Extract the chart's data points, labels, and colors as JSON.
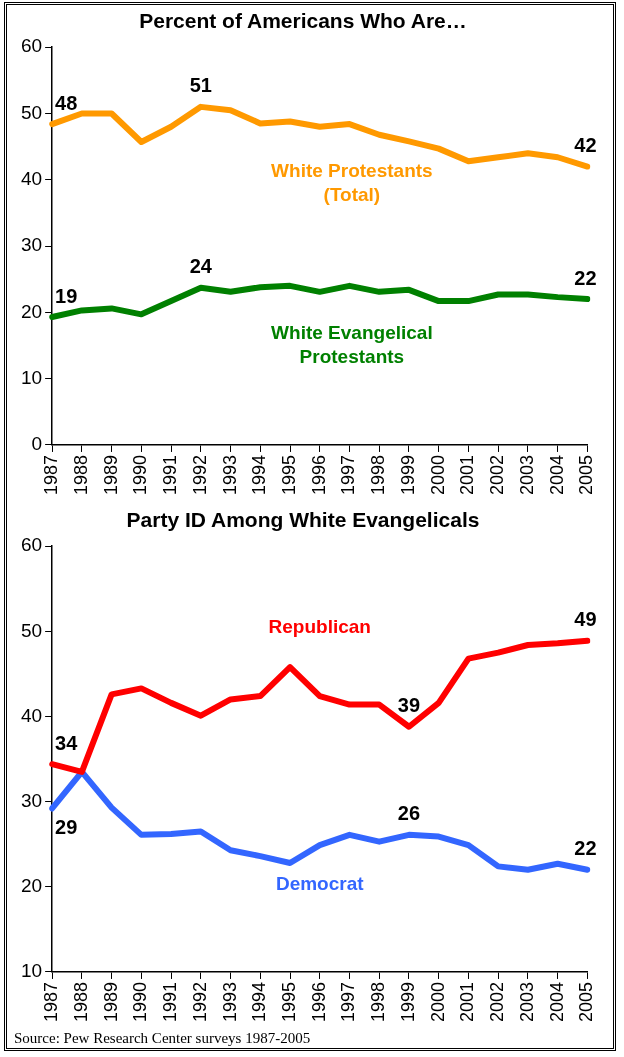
{
  "chart_data": [
    {
      "type": "line",
      "title": "Percent of Americans Who Are…",
      "categories": [
        "1987",
        "1988",
        "1989",
        "1990",
        "1991",
        "1992",
        "1993",
        "1994",
        "1995",
        "1996",
        "1997",
        "1998",
        "1999",
        "2000",
        "2001",
        "2002",
        "2003",
        "2004",
        "2005"
      ],
      "series": [
        {
          "name": "White Protestants (Total)",
          "color": "#ff9900",
          "values": [
            48.4,
            50,
            50,
            45.7,
            48,
            51,
            50.5,
            48.5,
            48.8,
            48,
            48.4,
            46.8,
            45.8,
            44.7,
            42.8,
            43.4,
            44,
            43.4,
            42
          ],
          "value_labels": [
            "48",
            null,
            null,
            null,
            null,
            "51",
            null,
            null,
            null,
            null,
            null,
            null,
            null,
            null,
            null,
            null,
            null,
            null,
            "42"
          ]
        },
        {
          "name": "White Evangelical Protestants",
          "color": "#008000",
          "values": [
            19.3,
            20.3,
            20.6,
            19.7,
            21.7,
            23.7,
            23.1,
            23.8,
            24,
            23.1,
            24,
            23.1,
            23.4,
            21.7,
            21.7,
            22.7,
            22.7,
            22.3,
            22
          ],
          "value_labels": [
            "19",
            null,
            null,
            null,
            null,
            "24",
            null,
            null,
            null,
            null,
            null,
            null,
            null,
            null,
            null,
            null,
            null,
            null,
            "22"
          ]
        }
      ],
      "ylim": [
        0,
        60
      ],
      "yticks": [
        0,
        10,
        20,
        30,
        40,
        50,
        60
      ],
      "grid": false,
      "legend": false,
      "marker": "none",
      "line_style": "solid"
    },
    {
      "type": "line",
      "title": "Party ID Among White Evangelicals",
      "categories": [
        "1987",
        "1988",
        "1989",
        "1990",
        "1991",
        "1992",
        "1993",
        "1994",
        "1995",
        "1996",
        "1997",
        "1998",
        "1999",
        "2000",
        "2001",
        "2002",
        "2003",
        "2004",
        "2005"
      ],
      "series": [
        {
          "name": "Republican",
          "color": "#ff0000",
          "values": [
            34.4,
            33.5,
            42.6,
            43.3,
            41.6,
            40.1,
            42,
            42.4,
            45.8,
            42.4,
            41.4,
            41.4,
            38.8,
            41.6,
            46.8,
            47.5,
            48.4,
            48.6,
            48.9
          ],
          "value_labels": [
            "34",
            null,
            null,
            null,
            null,
            null,
            null,
            null,
            null,
            null,
            null,
            null,
            "39",
            null,
            null,
            null,
            null,
            null,
            "49"
          ]
        },
        {
          "name": "Democrat",
          "color": "#3366ff",
          "values": [
            29.2,
            33.5,
            29.3,
            26.1,
            26.2,
            26.5,
            24.3,
            23.6,
            22.8,
            24.9,
            26.1,
            25.3,
            26.1,
            25.9,
            24.9,
            22.4,
            22,
            22.7,
            22
          ],
          "value_labels": [
            "29",
            null,
            null,
            null,
            null,
            null,
            null,
            null,
            null,
            null,
            null,
            null,
            "26",
            null,
            null,
            null,
            null,
            null,
            "22"
          ]
        }
      ],
      "ylim": [
        10,
        60
      ],
      "yticks": [
        10,
        20,
        30,
        40,
        50,
        60
      ],
      "grid": false,
      "legend": false,
      "marker": "none",
      "line_style": "solid",
      "annotations": [
        "Source: Pew Research Center surveys 1987-2005"
      ]
    }
  ]
}
